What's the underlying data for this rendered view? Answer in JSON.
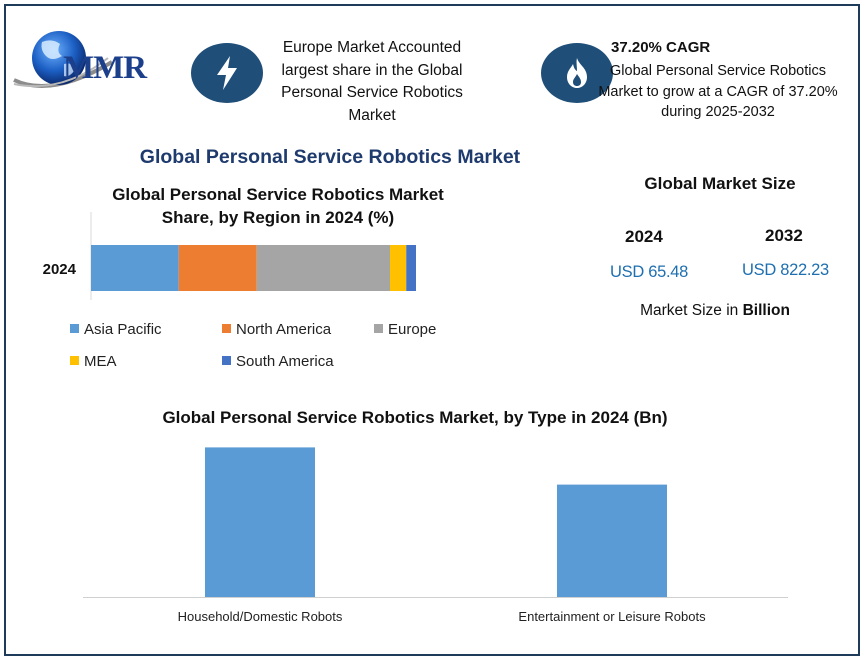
{
  "brand": {
    "name": "MMR"
  },
  "highlights": [
    {
      "icon": "lightning-icon",
      "text": "Europe Market Accounted largest share in the Global Personal Service Robotics Market"
    },
    {
      "icon": "flame-icon",
      "title": "37.20% CAGR",
      "text": "Global Personal Service Robotics Market to grow at a CAGR of 37.20% during 2025-2032"
    }
  ],
  "title": "Global Personal Service Robotics Market",
  "market_size": {
    "title": "Global Market Size",
    "years": [
      "2024",
      "2032"
    ],
    "values": [
      "USD 65.48",
      "USD 822.23"
    ],
    "unit_prefix": "Market Size in ",
    "unit": "Billion"
  },
  "colors": {
    "asia_pacific": "#5b9bd5",
    "north_america": "#ed7d31",
    "europe": "#a5a5a5",
    "mea": "#ffc000",
    "south_america": "#4472c4",
    "bar": "#5b9bd5",
    "accent_dark": "#1f4e79",
    "title_blue": "#1f3b6e"
  },
  "chart_data": [
    {
      "type": "bar",
      "orientation": "horizontal",
      "stacked": true,
      "title": "Global Personal Service Robotics Market Share, by Region in 2024 (%)",
      "categories": [
        "2024"
      ],
      "series": [
        {
          "name": "Asia Pacific",
          "values": [
            27
          ]
        },
        {
          "name": "North America",
          "values": [
            24
          ]
        },
        {
          "name": "Europe",
          "values": [
            41
          ]
        },
        {
          "name": "MEA",
          "values": [
            5
          ]
        },
        {
          "name": "South America",
          "values": [
            3
          ]
        }
      ],
      "xlim": [
        0,
        100
      ],
      "grid": false,
      "legend": "bottom"
    },
    {
      "type": "bar",
      "title": "Global Personal Service Robotics Market, by Type in 2024 (Bn)",
      "categories": [
        "Household/Domestic Robots",
        "Entertainment or Leisure Robots"
      ],
      "values": [
        37.4,
        28.1
      ],
      "ylim": [
        0,
        40
      ],
      "grid": false,
      "legend": "none"
    }
  ]
}
